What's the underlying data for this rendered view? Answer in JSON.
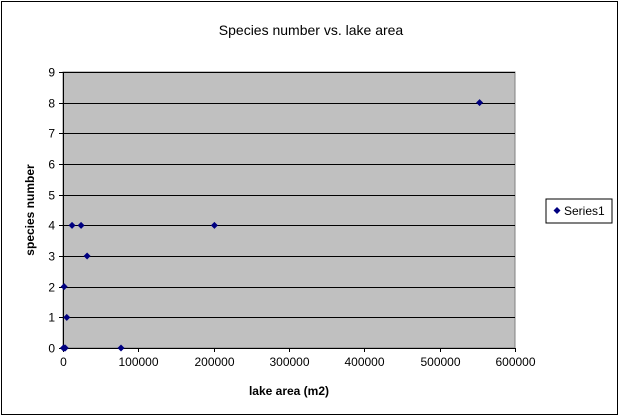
{
  "chart_data": {
    "type": "scatter",
    "title": "Species number vs. lake area",
    "xlabel": "lake area (m2)",
    "ylabel": "species number",
    "xlim": [
      0,
      600000
    ],
    "ylim": [
      0,
      9
    ],
    "x_ticks": [
      0,
      100000,
      200000,
      300000,
      400000,
      500000,
      600000
    ],
    "y_ticks": [
      0,
      1,
      2,
      3,
      4,
      5,
      6,
      7,
      8,
      9
    ],
    "grid": "horizontal",
    "plot_background": "#c0c0c0",
    "legend_position": "right",
    "series": [
      {
        "name": "Series1",
        "color": "#000080",
        "marker": "diamond",
        "points": [
          {
            "x": 500,
            "y": 0
          },
          {
            "x": 2000,
            "y": 0
          },
          {
            "x": 3000,
            "y": 0
          },
          {
            "x": 1500,
            "y": 2
          },
          {
            "x": 5000,
            "y": 1
          },
          {
            "x": 12000,
            "y": 4
          },
          {
            "x": 24000,
            "y": 4
          },
          {
            "x": 32000,
            "y": 3
          },
          {
            "x": 77000,
            "y": 0
          },
          {
            "x": 201000,
            "y": 4
          },
          {
            "x": 553000,
            "y": 8
          }
        ]
      }
    ]
  }
}
